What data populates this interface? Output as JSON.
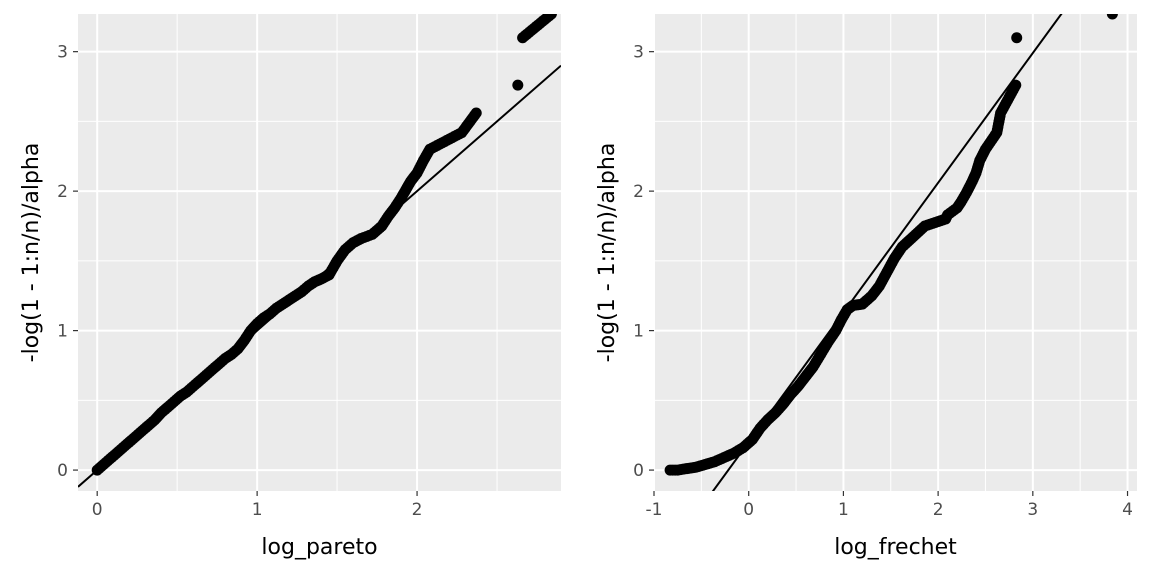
{
  "chart_data": [
    {
      "type": "scatter",
      "panel": "left",
      "xlabel": "log_pareto",
      "ylabel": "-log(1 - 1:n/n)/alpha",
      "xlim": [
        -0.12,
        2.9
      ],
      "ylim": [
        -0.15,
        3.27
      ],
      "x_ticks": [
        "0",
        "1",
        "2"
      ],
      "y_ticks": [
        "0",
        "1",
        "2",
        "3"
      ],
      "grid": true,
      "background": "#ebebeb",
      "point_color": "#000000",
      "reference_line": {
        "intercept": 0.0,
        "slope": 1.0
      },
      "points": [
        [
          0.0,
          0.0
        ],
        [
          0.04,
          0.04
        ],
        [
          0.08,
          0.08
        ],
        [
          0.12,
          0.12
        ],
        [
          0.16,
          0.16
        ],
        [
          0.2,
          0.2
        ],
        [
          0.24,
          0.24
        ],
        [
          0.28,
          0.28
        ],
        [
          0.32,
          0.32
        ],
        [
          0.36,
          0.36
        ],
        [
          0.4,
          0.41
        ],
        [
          0.44,
          0.45
        ],
        [
          0.48,
          0.49
        ],
        [
          0.52,
          0.53
        ],
        [
          0.56,
          0.56
        ],
        [
          0.6,
          0.6
        ],
        [
          0.64,
          0.64
        ],
        [
          0.68,
          0.68
        ],
        [
          0.72,
          0.72
        ],
        [
          0.76,
          0.76
        ],
        [
          0.8,
          0.8
        ],
        [
          0.84,
          0.83
        ],
        [
          0.88,
          0.87
        ],
        [
          0.92,
          0.93
        ],
        [
          0.96,
          1.0
        ],
        [
          1.0,
          1.05
        ],
        [
          1.04,
          1.09
        ],
        [
          1.08,
          1.12
        ],
        [
          1.12,
          1.16
        ],
        [
          1.16,
          1.19
        ],
        [
          1.2,
          1.22
        ],
        [
          1.24,
          1.25
        ],
        [
          1.28,
          1.28
        ],
        [
          1.32,
          1.32
        ],
        [
          1.36,
          1.35
        ],
        [
          1.4,
          1.37
        ],
        [
          1.45,
          1.4
        ],
        [
          1.5,
          1.5
        ],
        [
          1.55,
          1.58
        ],
        [
          1.6,
          1.63
        ],
        [
          1.65,
          1.66
        ],
        [
          1.72,
          1.69
        ],
        [
          1.78,
          1.75
        ],
        [
          1.82,
          1.82
        ],
        [
          1.86,
          1.88
        ],
        [
          1.9,
          1.95
        ],
        [
          1.93,
          2.01
        ],
        [
          1.96,
          2.07
        ],
        [
          2.0,
          2.13
        ],
        [
          2.04,
          2.22
        ],
        [
          2.08,
          2.3
        ],
        [
          2.28,
          2.42
        ],
        [
          2.37,
          2.56
        ],
        [
          2.63,
          2.76
        ],
        [
          2.66,
          3.1
        ],
        [
          2.84,
          3.27
        ]
      ]
    },
    {
      "type": "scatter",
      "panel": "right",
      "xlabel": "log_frechet",
      "ylabel": "-log(1 - 1:n/n)/alpha",
      "xlim": [
        -1.0,
        4.1
      ],
      "ylim": [
        -0.15,
        3.27
      ],
      "x_ticks": [
        "-1",
        "0",
        "1",
        "2",
        "3",
        "4"
      ],
      "y_ticks": [
        "0",
        "1",
        "2",
        "3"
      ],
      "grid": true,
      "background": "#ebebeb",
      "point_color": "#000000",
      "reference_line": {
        "intercept": 0.2,
        "slope": 0.93
      },
      "points": [
        [
          -0.83,
          0.0
        ],
        [
          -0.75,
          0.0
        ],
        [
          -0.66,
          0.01
        ],
        [
          -0.56,
          0.02
        ],
        [
          -0.46,
          0.04
        ],
        [
          -0.36,
          0.06
        ],
        [
          -0.26,
          0.09
        ],
        [
          -0.16,
          0.12
        ],
        [
          -0.06,
          0.16
        ],
        [
          0.04,
          0.22
        ],
        [
          0.12,
          0.3
        ],
        [
          0.2,
          0.36
        ],
        [
          0.28,
          0.41
        ],
        [
          0.36,
          0.47
        ],
        [
          0.44,
          0.54
        ],
        [
          0.52,
          0.6
        ],
        [
          0.6,
          0.67
        ],
        [
          0.68,
          0.74
        ],
        [
          0.76,
          0.83
        ],
        [
          0.84,
          0.92
        ],
        [
          0.92,
          1.0
        ],
        [
          0.98,
          1.08
        ],
        [
          1.04,
          1.15
        ],
        [
          1.1,
          1.18
        ],
        [
          1.2,
          1.19
        ],
        [
          1.3,
          1.25
        ],
        [
          1.38,
          1.32
        ],
        [
          1.46,
          1.42
        ],
        [
          1.54,
          1.52
        ],
        [
          1.62,
          1.6
        ],
        [
          1.7,
          1.65
        ],
        [
          1.78,
          1.7
        ],
        [
          1.86,
          1.75
        ],
        [
          2.08,
          1.8
        ],
        [
          2.1,
          1.83
        ],
        [
          2.2,
          1.88
        ],
        [
          2.24,
          1.92
        ],
        [
          2.3,
          1.99
        ],
        [
          2.36,
          2.07
        ],
        [
          2.4,
          2.13
        ],
        [
          2.44,
          2.22
        ],
        [
          2.5,
          2.3
        ],
        [
          2.62,
          2.42
        ],
        [
          2.66,
          2.56
        ],
        [
          2.82,
          2.76
        ],
        [
          2.83,
          3.1
        ],
        [
          3.84,
          3.27
        ]
      ]
    }
  ]
}
